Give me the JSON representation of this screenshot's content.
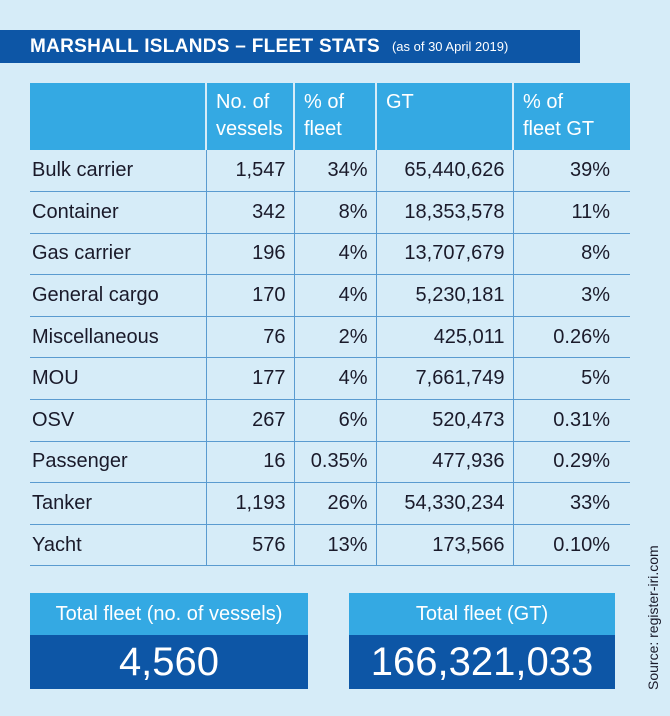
{
  "title": "MARSHALL ISLANDS – FLEET STATS",
  "subtitle": "(as of 30 April 2019)",
  "chart_data": {
    "type": "table",
    "columns": [
      "",
      "No. of vessels",
      "% of fleet",
      "GT",
      "% of fleet GT"
    ],
    "header_lines": [
      [
        ""
      ],
      [
        "No. of",
        "vessels"
      ],
      [
        "% of",
        "fleet"
      ],
      [
        "GT"
      ],
      [
        "% of",
        "fleet GT"
      ]
    ],
    "rows": [
      [
        "Bulk carrier",
        "1,547",
        "34%",
        "65,440,626",
        "39%"
      ],
      [
        "Container",
        "342",
        "8%",
        "18,353,578",
        "11%"
      ],
      [
        "Gas carrier",
        "196",
        "4%",
        "13,707,679",
        "8%"
      ],
      [
        "General cargo",
        "170",
        "4%",
        "5,230,181",
        "3%"
      ],
      [
        "Miscellaneous",
        "76",
        "2%",
        "425,011",
        "0.26%"
      ],
      [
        "MOU",
        "177",
        "4%",
        "7,661,749",
        "5%"
      ],
      [
        "OSV",
        "267",
        "6%",
        "520,473",
        "0.31%"
      ],
      [
        "Passenger",
        "16",
        "0.35%",
        "477,936",
        "0.29%"
      ],
      [
        "Tanker",
        "1,193",
        "26%",
        "54,330,234",
        "33%"
      ],
      [
        "Yacht",
        "576",
        "13%",
        "173,566",
        "0.10%"
      ]
    ]
  },
  "totals": {
    "vessels_label": "Total fleet (no. of vessels)",
    "vessels_value": "4,560",
    "gt_label": "Total fleet (GT)",
    "gt_value": "166,321,033"
  },
  "source": "Source: register-iri.com",
  "colors": {
    "background": "#d6ecf8",
    "title_bar": "#0d56a6",
    "header": "#34a9e3",
    "rule": "#5a9bd0"
  }
}
